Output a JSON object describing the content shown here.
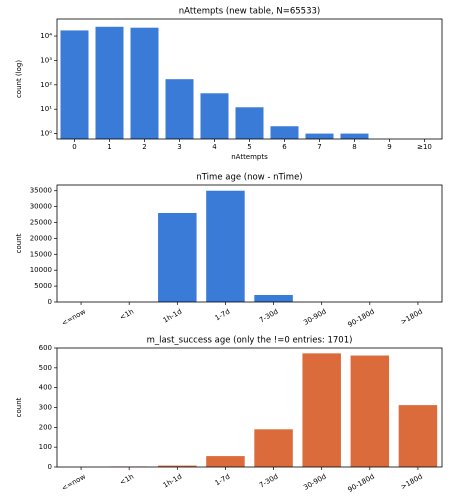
{
  "chart_data": [
    {
      "type": "bar",
      "title": "nAttempts (new table, N=65533)",
      "xlabel": "nAttempts",
      "ylabel": "count (log)",
      "categories": [
        "0",
        "1",
        "2",
        "3",
        "4",
        "5",
        "6",
        "7",
        "8",
        "9",
        "≥10"
      ],
      "values": [
        17000,
        24000,
        22000,
        170,
        45,
        12,
        2,
        1,
        1,
        0,
        0
      ],
      "color": "#3a7bd8",
      "log_scale": true,
      "ylim": [
        0.6,
        50000
      ],
      "yticks": [
        {
          "value": 1,
          "label": "10⁰"
        },
        {
          "value": 10,
          "label": "10¹"
        },
        {
          "value": 100,
          "label": "10²"
        },
        {
          "value": 1000,
          "label": "10³"
        },
        {
          "value": 10000,
          "label": "10⁴"
        }
      ],
      "rotate_labels": false
    },
    {
      "type": "bar",
      "title": "nTime age (now - nTime)",
      "ylabel": "count",
      "categories": [
        "<=now",
        "<1h",
        "1h-1d",
        "1-7d",
        "7-30d",
        "30-90d",
        "90-180d",
        ">180d"
      ],
      "values": [
        0,
        0,
        28000,
        35000,
        2200,
        0,
        0,
        0
      ],
      "color": "#3a7bd8",
      "log_scale": false,
      "ylim": [
        0,
        36800
      ],
      "yticks": [
        0,
        5000,
        10000,
        15000,
        20000,
        25000,
        30000,
        35000
      ],
      "rotate_labels": true
    },
    {
      "type": "bar",
      "title": "m_last_success age (only the !=0 entries: 1701)",
      "ylabel": "count",
      "categories": [
        "<=now",
        "<1h",
        "1h-1d",
        "1-7d",
        "7-30d",
        "30-90d",
        "90-180d",
        ">180d"
      ],
      "values": [
        0,
        2,
        7,
        55,
        190,
        573,
        562,
        312
      ],
      "color": "#dc6b3b",
      "log_scale": false,
      "ylim": [
        0,
        600
      ],
      "yticks": [
        0,
        100,
        200,
        300,
        400,
        500,
        600
      ],
      "rotate_labels": true
    }
  ]
}
